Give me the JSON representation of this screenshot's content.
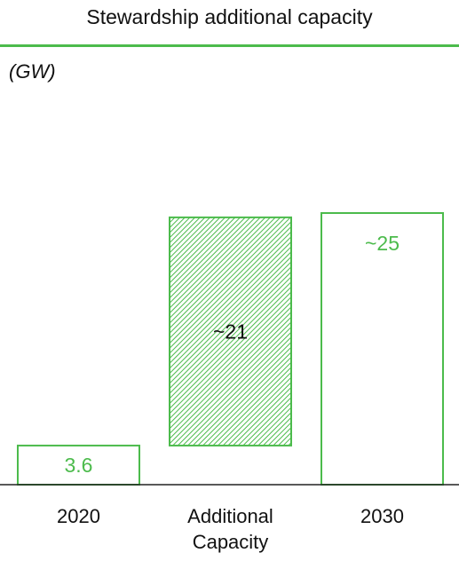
{
  "title": "Stewardship additional capacity",
  "unit_label": "(GW)",
  "colors": {
    "accent": "#4cbb4c",
    "text": "#111111",
    "axis": "#222222"
  },
  "chart_data": {
    "type": "bar",
    "subtype": "waterfall",
    "title": "Stewardship additional capacity",
    "ylabel": "(GW)",
    "categories": [
      "2020",
      "Additional Capacity",
      "2030"
    ],
    "category_lines": [
      [
        "2020"
      ],
      [
        "Additional",
        "Capacity"
      ],
      [
        "2030"
      ]
    ],
    "values": [
      3.6,
      21,
      25
    ],
    "bases": [
      0,
      3.6,
      0
    ],
    "data_labels": [
      "3.6",
      "~21",
      "~25"
    ],
    "styles": [
      "outline",
      "hatched",
      "outline"
    ],
    "ylim": [
      0,
      25
    ],
    "grid": false,
    "legend": "none"
  }
}
